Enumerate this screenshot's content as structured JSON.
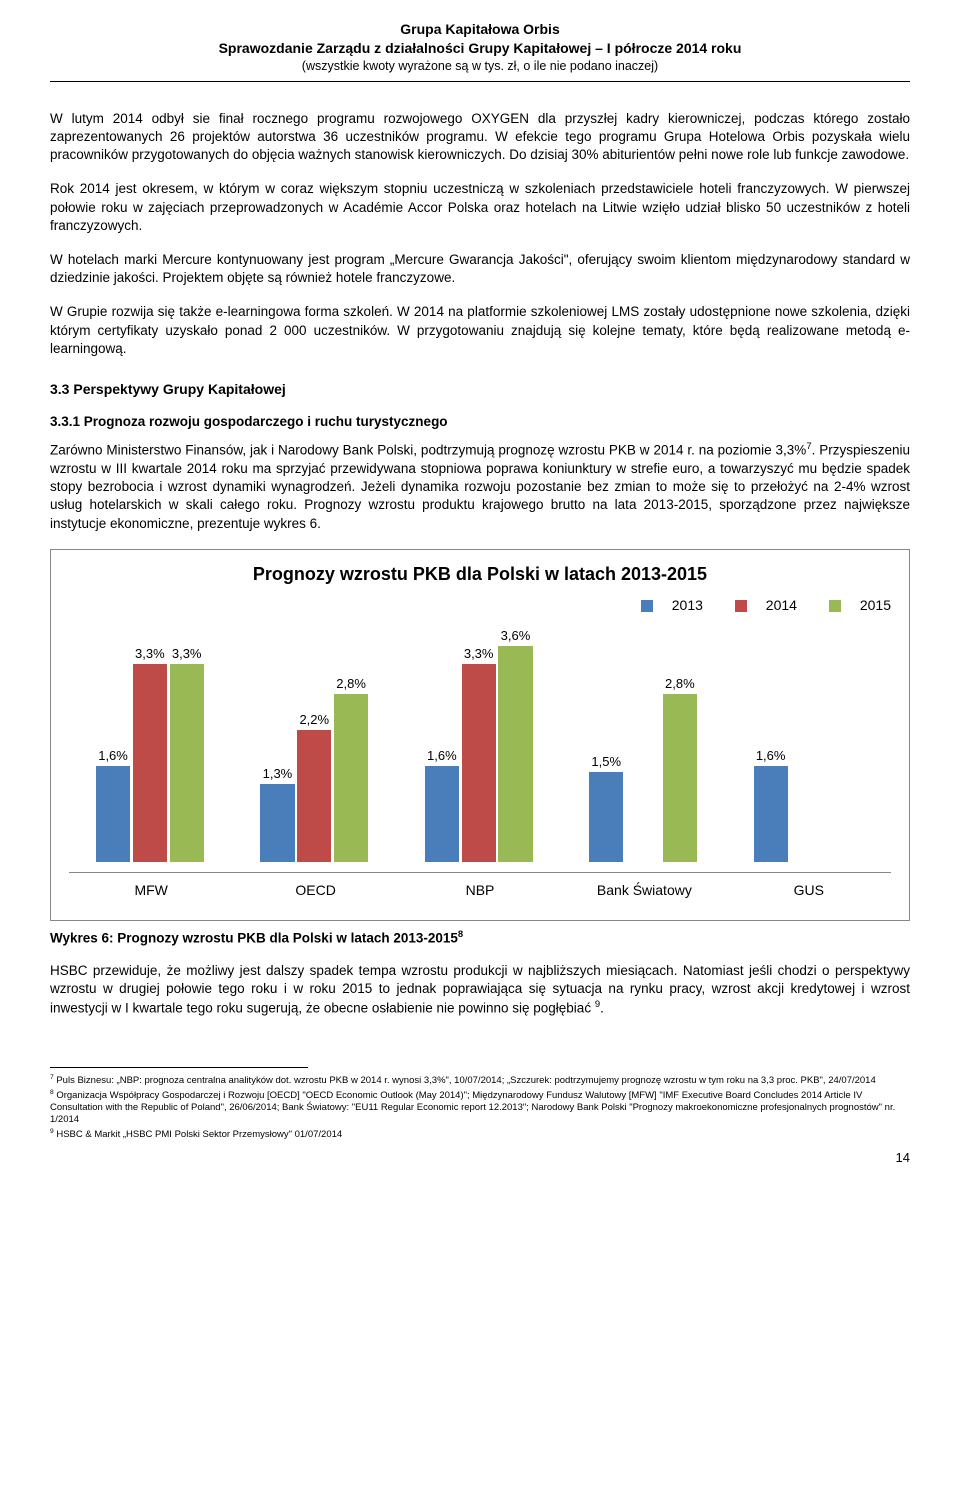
{
  "header": {
    "line1": "Grupa Kapitałowa Orbis",
    "line2": "Sprawozdanie Zarządu z działalności Grupy Kapitałowej – I półrocze 2014 roku",
    "line3": "(wszystkie kwoty wyrażone są w tys. zł, o ile nie podano inaczej)"
  },
  "paragraphs": {
    "p1": "W lutym 2014 odbył sie finał rocznego programu rozwojowego OXYGEN dla przyszłej kadry kierowniczej, podczas którego zostało zaprezentowanych 26 projektów autorstwa 36 uczestników programu. W efekcie tego programu Grupa Hotelowa Orbis pozyskała wielu pracowników przygotowanych do objęcia ważnych stanowisk kierowniczych. Do dzisiaj 30% abiturientów pełni nowe role lub funkcje zawodowe.",
    "p2": "Rok 2014 jest okresem, w którym w coraz większym stopniu uczestniczą w szkoleniach przedstawiciele hoteli franczyzowych. W pierwszej połowie roku w zajęciach przeprowadzonych w Académie Accor Polska oraz hotelach na Litwie wzięło udział blisko 50 uczestników z hoteli franczyzowych.",
    "p3": "W hotelach marki Mercure kontynuowany jest program „Mercure Gwarancja Jakości\", oferujący swoim klientom międzynarodowy standard w dziedzinie jakości. Projektem objęte są również hotele franczyzowe.",
    "p4": "W Grupie rozwija się także e-learningowa forma szkoleń. W 2014 na platformie szkoleniowej LMS zostały udostępnione nowe szkolenia, dzięki którym certyfikaty uzyskało ponad 2 000 uczestników.  W przygotowaniu znajdują się kolejne tematy, które będą realizowane metodą e-learningową.",
    "h3": "3.3  Perspektywy Grupy Kapitałowej",
    "h4": "3.3.1 Prognoza rozwoju gospodarczego i ruchu turystycznego",
    "p5a": "Zarówno Ministerstwo Finansów, jak i Narodowy Bank Polski, podtrzymują prognozę wzrostu PKB w 2014 r. na poziomie 3,3%",
    "p5b": ". Przyspieszeniu wzrostu w III kwartale 2014 roku ma sprzyjać przewidywana stopniowa poprawa koniunktury w strefie euro, a towarzyszyć mu będzie spadek stopy bezrobocia i wzrost dynamiki wynagrodzeń. Jeżeli dynamika rozwoju pozostanie bez zmian to może się to przełożyć na 2-4% wzrost usług hotelarskich w skali całego roku. Prognozy wzrostu produktu krajowego brutto na lata 2013-2015, sporządzone przez największe instytucje ekonomiczne, prezentuje wykres 6.",
    "caption": "Wykres 6: Prognozy wzrostu PKB dla Polski w latach 2013-2015",
    "p6a": "HSBC przewiduje, że możliwy jest dalszy spadek tempa wzrostu produkcji w najbliższych miesiącach. Natomiast jeśli chodzi o perspektywy wzrostu w drugiej połowie tego roku i w roku 2015 to jednak poprawiająca się sytuacja na rynku pracy, wzrost akcji kredytowej i wzrost inwestycji w I kwartale tego roku sugerują, że obecne osłabienie nie powinno się pogłębiać ",
    "p6b": "."
  },
  "chart": {
    "title": "Prognozy wzrostu PKB dla Polski w latach 2013-2015",
    "ymax": 4.0,
    "colors": {
      "2013": "#4a7ebb",
      "2014": "#be4b48",
      "2015": "#98b954"
    },
    "legend": [
      "2013",
      "2014",
      "2015"
    ],
    "categories": [
      "MFW",
      "OECD",
      "NBP",
      "Bank Światowy",
      "GUS"
    ],
    "series": {
      "MFW": {
        "2013": "1,6%",
        "2014": "3,3%",
        "2015": "3,3%",
        "v": [
          1.6,
          3.3,
          3.3
        ]
      },
      "OECD": {
        "2013": "1,3%",
        "2014": "2,2%",
        "2015": "2,8%",
        "v": [
          1.3,
          2.2,
          2.8
        ]
      },
      "NBP": {
        "2013": "1,6%",
        "2014": "3,3%",
        "2015": "3,6%",
        "v": [
          1.6,
          3.3,
          3.6
        ]
      },
      "Bank Światowy": {
        "2013": "1,5%",
        "2014": "",
        "2015": "2,8%",
        "v": [
          1.5,
          null,
          2.8
        ]
      },
      "GUS": {
        "2013": "1,6%",
        "2014": "",
        "2015": "",
        "v": [
          1.6,
          null,
          null
        ]
      }
    }
  },
  "footnotes": {
    "f7": "Puls Biznesu: „NBP: prognoza centralna analityków dot. wzrostu PKB w 2014 r. wynosi 3,3%\", 10/07/2014; „Szczurek: podtrzymujemy prognozę wzrostu w tym roku na 3,3 proc. PKB\", 24/07/2014",
    "f8": "Organizacja Współpracy Gospodarczej i Rozwoju [OECD] \"OECD Economic Outlook (May 2014)\"; Międzynarodowy Fundusz Walutowy [MFW] \"IMF Executive Board Concludes 2014 Article IV Consultation with the Republic of Poland\", 26/06/2014; Bank Światowy: \"EU11 Regular Economic report 12.2013\"; Narodowy Bank Polski \"Prognozy makroekonomiczne profesjonalnych prognostów\" nr. 1/2014",
    "f9": "HSBC & Markit „HSBC PMI Polski Sektor Przemysłowy\" 01/07/2014"
  },
  "page_number": "14"
}
